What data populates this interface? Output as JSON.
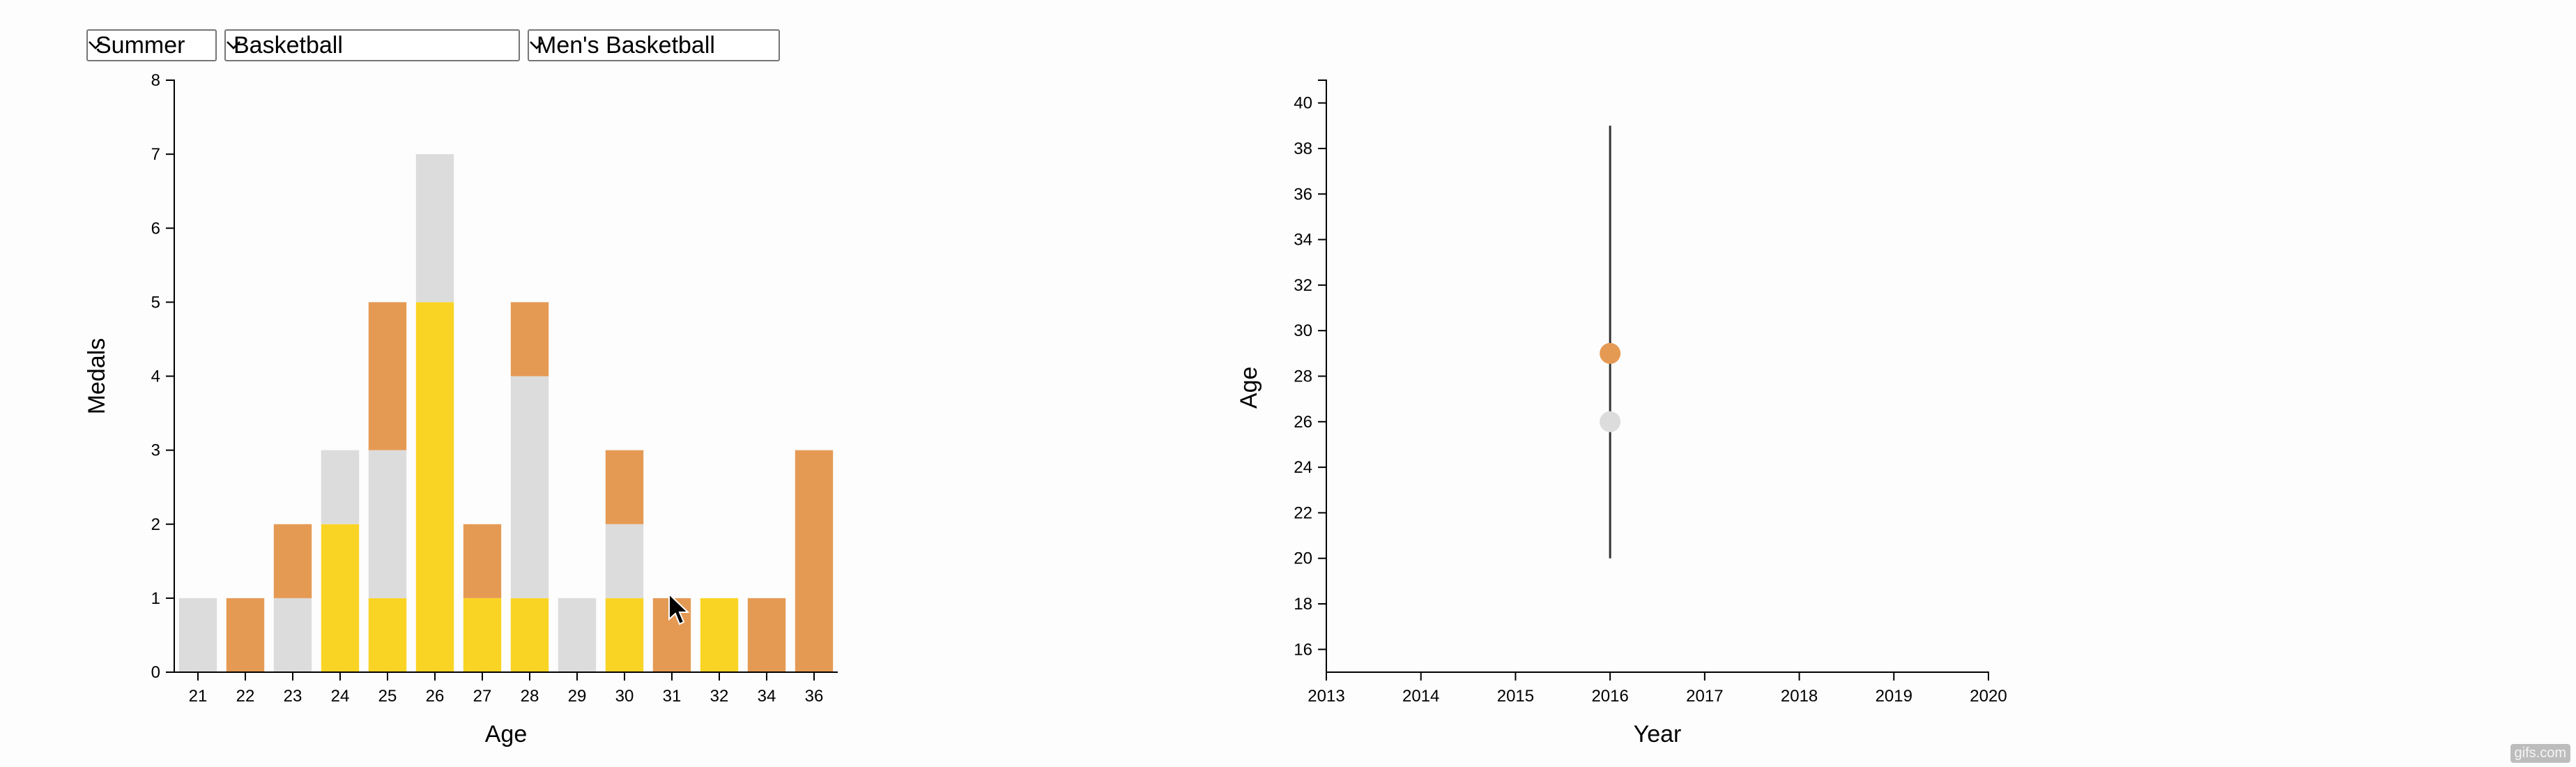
{
  "controls": {
    "season": {
      "value": "Summer"
    },
    "sport": {
      "value": "Basketball"
    },
    "event": {
      "value": "Men's Basketball"
    }
  },
  "colors": {
    "gold": "#fad424",
    "silver": "#dcdcdc",
    "bronze": "#e59a54",
    "axis": "#000000",
    "background": "#fdfdfd"
  },
  "watermark": "gifs.com",
  "chart_data": [
    {
      "type": "bar",
      "stacked": true,
      "title": "",
      "xlabel": "Age",
      "ylabel": "Medals",
      "ylim": [
        0,
        8
      ],
      "yticks": [
        0,
        1,
        2,
        3,
        4,
        5,
        6,
        7,
        8
      ],
      "grid": false,
      "categories": [
        "21",
        "22",
        "23",
        "24",
        "25",
        "26",
        "27",
        "28",
        "29",
        "30",
        "31",
        "32",
        "34",
        "36"
      ],
      "series": [
        {
          "color_key": "gold",
          "values": [
            0,
            0,
            0,
            2,
            1,
            5,
            1,
            1,
            0,
            1,
            0,
            1,
            0,
            0
          ]
        },
        {
          "color_key": "silver",
          "values": [
            1,
            0,
            1,
            1,
            2,
            2,
            0,
            3,
            1,
            1,
            0,
            0,
            0,
            0
          ]
        },
        {
          "color_key": "bronze",
          "values": [
            0,
            1,
            1,
            0,
            2,
            0,
            1,
            1,
            0,
            1,
            1,
            0,
            1,
            3
          ]
        }
      ]
    },
    {
      "type": "scatter",
      "title": "",
      "xlabel": "Year",
      "ylabel": "Age",
      "xlim": [
        2013,
        2020
      ],
      "ylim": [
        15,
        41
      ],
      "xticks": [
        2013,
        2014,
        2015,
        2016,
        2017,
        2018,
        2019,
        2020
      ],
      "yticks": [
        16,
        18,
        20,
        22,
        24,
        26,
        28,
        30,
        32,
        34,
        36,
        38,
        40
      ],
      "grid": false,
      "range_lines": [
        {
          "x": 2016,
          "y_min": 20,
          "y_max": 39
        }
      ],
      "points": [
        {
          "x": 2016,
          "y": 29,
          "color_key": "bronze"
        },
        {
          "x": 2016,
          "y": 26,
          "color_key": "silver"
        }
      ]
    }
  ]
}
